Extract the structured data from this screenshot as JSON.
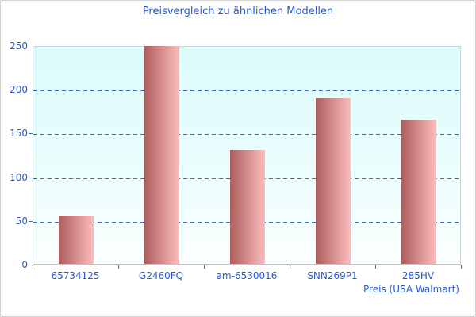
{
  "window": {
    "background": "#ffffff",
    "border_color": "#d3d3d3"
  },
  "chart_data": {
    "type": "bar",
    "title": "Preisvergleich zu ähnlichen Modellen",
    "categories": [
      "65734125",
      "G2460FQ",
      "am-6530016",
      "SNN269P1",
      "285HV"
    ],
    "values": [
      55,
      249,
      130,
      189,
      165
    ],
    "xlabel": "Preis (USA Walmart)",
    "ylabel": "",
    "ylim": [
      0,
      250
    ],
    "yticks": [
      0,
      50,
      100,
      150,
      200,
      250
    ],
    "grid": "horizontal-dashed",
    "legend": "none",
    "colors": {
      "title_text": "#2457d9",
      "axis_text": "#2457d9",
      "gridline": "#3a67c6",
      "bar_gradient_left": "#ae5d5d",
      "bar_gradient_right": "#fcbdbd",
      "plot_bg_top": "#dcfbfb",
      "plot_bg_bottom": "#ffffff",
      "plot_border": "#ccd6d8"
    }
  }
}
